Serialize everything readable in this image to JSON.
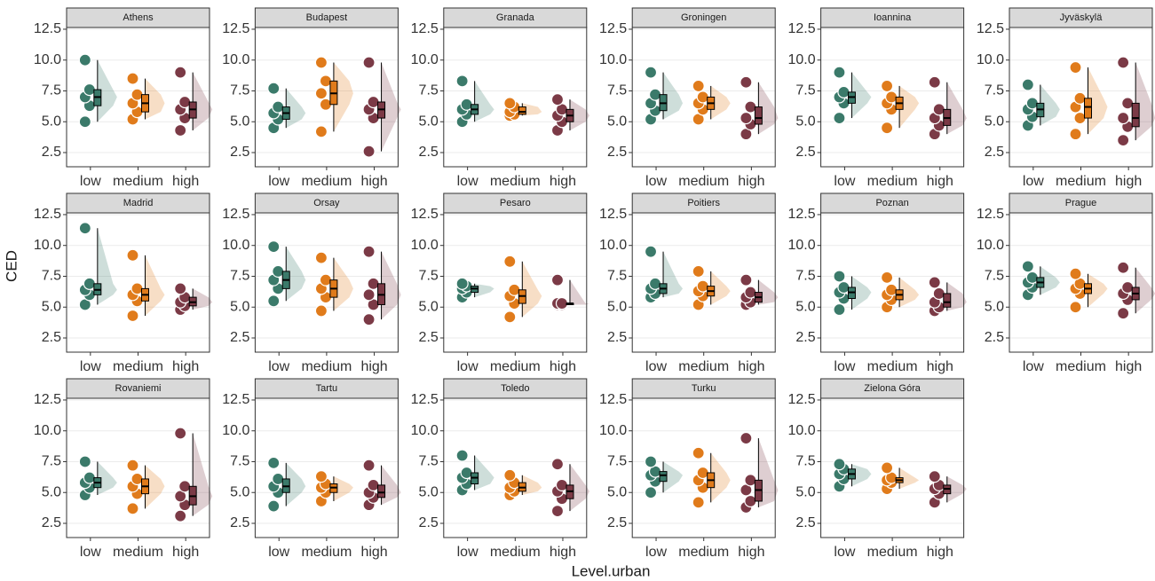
{
  "xlabel": "Level.urban",
  "ylabel": "CED",
  "chart_data": [
    {
      "type": "raincloud",
      "title": "Athens",
      "categories": [
        "low",
        "medium",
        "high"
      ],
      "colors": [
        "#3b7a6a",
        "#e07b1b",
        "#7b3a46"
      ],
      "ylim": [
        1.35,
        12.64
      ],
      "yticks": [
        2.5,
        {
          "value": 5,
          "label": "5.0"
        },
        7.5,
        {
          "value": 10,
          "label": "10.0"
        },
        12.5
      ],
      "grid": true,
      "boxes": [
        {
          "min": 5.0,
          "q1": 6.3,
          "median": 7.0,
          "q3": 7.6,
          "max": 10.0
        },
        {
          "min": 5.2,
          "q1": 5.8,
          "median": 6.5,
          "q3": 7.2,
          "max": 8.5
        },
        {
          "min": 4.3,
          "q1": 5.3,
          "median": 6.0,
          "q3": 6.6,
          "max": 9.0
        }
      ]
    },
    {
      "type": "raincloud",
      "title": "Budapest",
      "categories": [
        "low",
        "medium",
        "high"
      ],
      "colors": [
        "#3b7a6a",
        "#e07b1b",
        "#7b3a46"
      ],
      "ylim": [
        1.35,
        12.64
      ],
      "yticks": [
        2.5,
        {
          "value": 5,
          "label": "5.0"
        },
        7.5,
        {
          "value": 10,
          "label": "10.0"
        },
        12.5
      ],
      "grid": true,
      "boxes": [
        {
          "min": 4.5,
          "q1": 5.2,
          "median": 5.7,
          "q3": 6.2,
          "max": 7.7
        },
        {
          "min": 4.2,
          "q1": 6.4,
          "median": 7.3,
          "q3": 8.3,
          "max": 9.8
        },
        {
          "min": 2.6,
          "q1": 5.3,
          "median": 6.0,
          "q3": 6.6,
          "max": 9.8
        }
      ]
    },
    {
      "type": "raincloud",
      "title": "Granada",
      "categories": [
        "low",
        "medium",
        "high"
      ],
      "colors": [
        "#3b7a6a",
        "#e07b1b",
        "#7b3a46"
      ],
      "ylim": [
        1.35,
        12.64
      ],
      "yticks": [
        2.5,
        {
          "value": 5,
          "label": "5.0"
        },
        7.5,
        {
          "value": 10,
          "label": "10.0"
        },
        12.5
      ],
      "grid": true,
      "boxes": [
        {
          "min": 5.0,
          "q1": 5.6,
          "median": 6.0,
          "q3": 6.4,
          "max": 8.3
        },
        {
          "min": 5.5,
          "q1": 5.6,
          "median": 5.8,
          "q3": 6.2,
          "max": 6.5
        },
        {
          "min": 4.3,
          "q1": 5.0,
          "median": 5.5,
          "q3": 6.0,
          "max": 6.8
        }
      ]
    },
    {
      "type": "raincloud",
      "title": "Groningen",
      "categories": [
        "low",
        "medium",
        "high"
      ],
      "colors": [
        "#3b7a6a",
        "#e07b1b",
        "#7b3a46"
      ],
      "ylim": [
        1.35,
        12.64
      ],
      "yticks": [
        2.5,
        {
          "value": 5,
          "label": "5.0"
        },
        7.5,
        {
          "value": 10,
          "label": "10.0"
        },
        12.5
      ],
      "grid": true,
      "boxes": [
        {
          "min": 5.2,
          "q1": 5.9,
          "median": 6.5,
          "q3": 7.2,
          "max": 9.0
        },
        {
          "min": 5.2,
          "q1": 6.0,
          "median": 6.5,
          "q3": 7.0,
          "max": 7.9
        },
        {
          "min": 4.0,
          "q1": 4.8,
          "median": 5.3,
          "q3": 6.2,
          "max": 8.2
        }
      ]
    },
    {
      "type": "raincloud",
      "title": "Ioannina",
      "categories": [
        "low",
        "medium",
        "high"
      ],
      "colors": [
        "#3b7a6a",
        "#e07b1b",
        "#7b3a46"
      ],
      "ylim": [
        1.35,
        12.64
      ],
      "yticks": [
        2.5,
        {
          "value": 5,
          "label": "5.0"
        },
        7.5,
        {
          "value": 10,
          "label": "10.0"
        },
        12.5
      ],
      "grid": true,
      "boxes": [
        {
          "min": 5.3,
          "q1": 6.5,
          "median": 7.0,
          "q3": 7.4,
          "max": 9.0
        },
        {
          "min": 4.5,
          "q1": 6.0,
          "median": 6.5,
          "q3": 7.0,
          "max": 7.9
        },
        {
          "min": 4.0,
          "q1": 4.7,
          "median": 5.3,
          "q3": 6.0,
          "max": 8.2
        }
      ]
    },
    {
      "type": "raincloud",
      "title": "Jyväskylä",
      "categories": [
        "low",
        "medium",
        "high"
      ],
      "colors": [
        "#3b7a6a",
        "#e07b1b",
        "#7b3a46"
      ],
      "ylim": [
        1.35,
        12.64
      ],
      "yticks": [
        2.5,
        {
          "value": 5,
          "label": "5.0"
        },
        7.5,
        {
          "value": 10,
          "label": "10.0"
        },
        12.5
      ],
      "grid": true,
      "boxes": [
        {
          "min": 4.7,
          "q1": 5.4,
          "median": 6.0,
          "q3": 6.5,
          "max": 8.0
        },
        {
          "min": 4.0,
          "q1": 5.3,
          "median": 6.2,
          "q3": 6.9,
          "max": 9.4
        },
        {
          "min": 3.5,
          "q1": 4.6,
          "median": 5.3,
          "q3": 6.5,
          "max": 9.8
        }
      ]
    },
    {
      "type": "raincloud",
      "title": "Madrid",
      "categories": [
        "low",
        "medium",
        "high"
      ],
      "colors": [
        "#3b7a6a",
        "#e07b1b",
        "#7b3a46"
      ],
      "ylim": [
        1.35,
        12.64
      ],
      "yticks": [
        2.5,
        {
          "value": 5,
          "label": "5.0"
        },
        7.5,
        {
          "value": 10,
          "label": "10.0"
        },
        12.5
      ],
      "grid": true,
      "boxes": [
        {
          "min": 5.2,
          "q1": 6.0,
          "median": 6.4,
          "q3": 6.9,
          "max": 11.4
        },
        {
          "min": 4.3,
          "q1": 5.5,
          "median": 6.0,
          "q3": 6.5,
          "max": 9.2
        },
        {
          "min": 4.8,
          "q1": 5.1,
          "median": 5.4,
          "q3": 5.8,
          "max": 6.5
        }
      ]
    },
    {
      "type": "raincloud",
      "title": "Orsay",
      "categories": [
        "low",
        "medium",
        "high"
      ],
      "colors": [
        "#3b7a6a",
        "#e07b1b",
        "#7b3a46"
      ],
      "ylim": [
        1.35,
        12.64
      ],
      "yticks": [
        2.5,
        {
          "value": 5,
          "label": "5.0"
        },
        7.5,
        {
          "value": 10,
          "label": "10.0"
        },
        12.5
      ],
      "grid": true,
      "boxes": [
        {
          "min": 5.5,
          "q1": 6.5,
          "median": 7.2,
          "q3": 7.9,
          "max": 9.9
        },
        {
          "min": 4.7,
          "q1": 5.8,
          "median": 6.5,
          "q3": 7.2,
          "max": 9.0
        },
        {
          "min": 4.0,
          "q1": 5.2,
          "median": 6.0,
          "q3": 6.9,
          "max": 9.5
        }
      ]
    },
    {
      "type": "raincloud",
      "title": "Pesaro",
      "categories": [
        "low",
        "medium",
        "high"
      ],
      "colors": [
        "#3b7a6a",
        "#e07b1b",
        "#7b3a46"
      ],
      "ylim": [
        1.35,
        12.64
      ],
      "yticks": [
        2.5,
        {
          "value": 5,
          "label": "5.0"
        },
        7.5,
        {
          "value": 10,
          "label": "10.0"
        },
        12.5
      ],
      "grid": true,
      "boxes": [
        {
          "min": 5.8,
          "q1": 6.2,
          "median": 6.5,
          "q3": 6.7,
          "max": 6.9
        },
        {
          "min": 4.2,
          "q1": 5.3,
          "median": 5.9,
          "q3": 6.4,
          "max": 8.7
        },
        {
          "min": 5.2,
          "q1": 5.2,
          "median": 5.3,
          "q3": 5.3,
          "max": 7.2
        }
      ]
    },
    {
      "type": "raincloud",
      "title": "Poitiers",
      "categories": [
        "low",
        "medium",
        "high"
      ],
      "colors": [
        "#3b7a6a",
        "#e07b1b",
        "#7b3a46"
      ],
      "ylim": [
        1.35,
        12.64
      ],
      "yticks": [
        2.5,
        {
          "value": 5,
          "label": "5.0"
        },
        7.5,
        {
          "value": 10,
          "label": "10.0"
        },
        12.5
      ],
      "grid": true,
      "boxes": [
        {
          "min": 5.8,
          "q1": 6.1,
          "median": 6.5,
          "q3": 6.9,
          "max": 9.5
        },
        {
          "min": 5.2,
          "q1": 5.9,
          "median": 6.3,
          "q3": 6.7,
          "max": 7.9
        },
        {
          "min": 5.2,
          "q1": 5.4,
          "median": 5.8,
          "q3": 6.2,
          "max": 7.2
        }
      ]
    },
    {
      "type": "raincloud",
      "title": "Poznan",
      "categories": [
        "low",
        "medium",
        "high"
      ],
      "colors": [
        "#3b7a6a",
        "#e07b1b",
        "#7b3a46"
      ],
      "ylim": [
        1.35,
        12.64
      ],
      "yticks": [
        2.5,
        {
          "value": 5,
          "label": "5.0"
        },
        7.5,
        {
          "value": 10,
          "label": "10.0"
        },
        12.5
      ],
      "grid": true,
      "boxes": [
        {
          "min": 4.8,
          "q1": 5.7,
          "median": 6.2,
          "q3": 6.6,
          "max": 7.5
        },
        {
          "min": 5.0,
          "q1": 5.6,
          "median": 6.0,
          "q3": 6.4,
          "max": 7.4
        },
        {
          "min": 4.7,
          "q1": 5.0,
          "median": 5.4,
          "q3": 6.1,
          "max": 7.0
        }
      ]
    },
    {
      "type": "raincloud",
      "title": "Prague",
      "categories": [
        "low",
        "medium",
        "high"
      ],
      "colors": [
        "#3b7a6a",
        "#e07b1b",
        "#7b3a46"
      ],
      "ylim": [
        1.35,
        12.64
      ],
      "yticks": [
        2.5,
        {
          "value": 5,
          "label": "5.0"
        },
        7.5,
        {
          "value": 10,
          "label": "10.0"
        },
        12.5
      ],
      "grid": true,
      "boxes": [
        {
          "min": 6.0,
          "q1": 6.6,
          "median": 7.0,
          "q3": 7.4,
          "max": 8.3
        },
        {
          "min": 5.0,
          "q1": 6.1,
          "median": 6.5,
          "q3": 6.9,
          "max": 7.7
        },
        {
          "min": 4.5,
          "q1": 5.6,
          "median": 6.1,
          "q3": 6.6,
          "max": 8.2
        }
      ]
    },
    {
      "type": "raincloud",
      "title": "Rovaniemi",
      "categories": [
        "low",
        "medium",
        "high"
      ],
      "colors": [
        "#3b7a6a",
        "#e07b1b",
        "#7b3a46"
      ],
      "ylim": [
        1.35,
        12.64
      ],
      "yticks": [
        2.5,
        {
          "value": 5,
          "label": "5.0"
        },
        7.5,
        {
          "value": 10,
          "label": "10.0"
        },
        12.5
      ],
      "grid": true,
      "boxes": [
        {
          "min": 4.8,
          "q1": 5.4,
          "median": 5.8,
          "q3": 6.2,
          "max": 7.5
        },
        {
          "min": 3.7,
          "q1": 4.9,
          "median": 5.5,
          "q3": 6.1,
          "max": 7.2
        },
        {
          "min": 3.1,
          "q1": 4.0,
          "median": 4.7,
          "q3": 5.5,
          "max": 9.8
        }
      ]
    },
    {
      "type": "raincloud",
      "title": "Tartu",
      "categories": [
        "low",
        "medium",
        "high"
      ],
      "colors": [
        "#3b7a6a",
        "#e07b1b",
        "#7b3a46"
      ],
      "ylim": [
        1.35,
        12.64
      ],
      "yticks": [
        2.5,
        {
          "value": 5,
          "label": "5.0"
        },
        7.5,
        {
          "value": 10,
          "label": "10.0"
        },
        12.5
      ],
      "grid": true,
      "boxes": [
        {
          "min": 3.9,
          "q1": 5.0,
          "median": 5.5,
          "q3": 6.1,
          "max": 7.4
        },
        {
          "min": 4.3,
          "q1": 5.0,
          "median": 5.4,
          "q3": 5.7,
          "max": 6.3
        },
        {
          "min": 4.0,
          "q1": 4.6,
          "median": 5.0,
          "q3": 5.6,
          "max": 7.2
        }
      ]
    },
    {
      "type": "raincloud",
      "title": "Toledo",
      "categories": [
        "low",
        "medium",
        "high"
      ],
      "colors": [
        "#3b7a6a",
        "#e07b1b",
        "#7b3a46"
      ],
      "ylim": [
        1.35,
        12.64
      ],
      "yticks": [
        2.5,
        {
          "value": 5,
          "label": "5.0"
        },
        7.5,
        {
          "value": 10,
          "label": "10.0"
        },
        12.5
      ],
      "grid": true,
      "boxes": [
        {
          "min": 5.2,
          "q1": 5.7,
          "median": 6.2,
          "q3": 6.6,
          "max": 8.0
        },
        {
          "min": 4.8,
          "q1": 5.1,
          "median": 5.4,
          "q3": 5.8,
          "max": 6.4
        },
        {
          "min": 3.5,
          "q1": 4.5,
          "median": 5.1,
          "q3": 5.6,
          "max": 7.3
        }
      ]
    },
    {
      "type": "raincloud",
      "title": "Turku",
      "categories": [
        "low",
        "medium",
        "high"
      ],
      "colors": [
        "#3b7a6a",
        "#e07b1b",
        "#7b3a46"
      ],
      "ylim": [
        1.35,
        12.64
      ],
      "yticks": [
        2.5,
        {
          "value": 5,
          "label": "5.0"
        },
        7.5,
        {
          "value": 10,
          "label": "10.0"
        },
        12.5
      ],
      "grid": true,
      "boxes": [
        {
          "min": 5.0,
          "q1": 5.9,
          "median": 6.4,
          "q3": 6.7,
          "max": 7.5
        },
        {
          "min": 4.2,
          "q1": 5.4,
          "median": 6.0,
          "q3": 6.6,
          "max": 8.2
        },
        {
          "min": 3.8,
          "q1": 4.3,
          "median": 5.2,
          "q3": 6.0,
          "max": 9.4
        }
      ]
    },
    {
      "type": "raincloud",
      "title": "Zielona Góra",
      "categories": [
        "low",
        "medium",
        "high"
      ],
      "colors": [
        "#3b7a6a",
        "#e07b1b",
        "#7b3a46"
      ],
      "ylim": [
        1.35,
        12.64
      ],
      "yticks": [
        2.5,
        {
          "value": 5,
          "label": "5.0"
        },
        7.5,
        {
          "value": 10,
          "label": "10.0"
        },
        12.5
      ],
      "grid": true,
      "boxes": [
        {
          "min": 5.5,
          "q1": 6.1,
          "median": 6.5,
          "q3": 6.9,
          "max": 7.3
        },
        {
          "min": 5.3,
          "q1": 5.8,
          "median": 6.0,
          "q3": 6.2,
          "max": 7.0
        },
        {
          "min": 4.2,
          "q1": 4.9,
          "median": 5.3,
          "q3": 5.6,
          "max": 6.3
        }
      ]
    }
  ]
}
